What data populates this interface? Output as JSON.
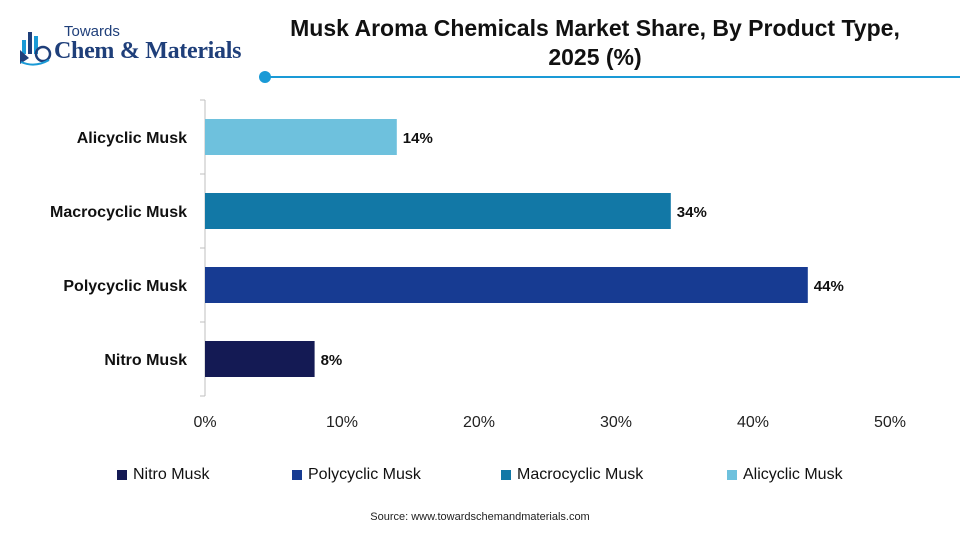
{
  "header": {
    "logo_small": "Towards",
    "logo_big": "Chem & Materials",
    "title": "Musk Aroma Chemicals Market Share, By Product Type, 2025 (%)",
    "accent_color": "#1a9ad6"
  },
  "chart_data": {
    "type": "bar",
    "orientation": "horizontal",
    "title": "Musk Aroma Chemicals Market Share, By Product Type, 2025 (%)",
    "categories": [
      "Alicyclic Musk",
      "Macrocyclic Musk",
      "Polycyclic Musk",
      "Nitro Musk"
    ],
    "values": [
      14,
      34,
      44,
      8
    ],
    "value_labels": [
      "14%",
      "34%",
      "44%",
      "8%"
    ],
    "colors": [
      "#6ec1dd",
      "#1278a6",
      "#173b92",
      "#141a54"
    ],
    "xlim": [
      0,
      50
    ],
    "x_ticks": [
      "0%",
      "10%",
      "20%",
      "30%",
      "40%",
      "50%"
    ],
    "grid": false,
    "legend_position": "bottom",
    "legend": [
      {
        "label": "Nitro Musk",
        "color": "#141a54"
      },
      {
        "label": "Polycyclic Musk",
        "color": "#173b92"
      },
      {
        "label": "Macrocyclic Musk",
        "color": "#1278a6"
      },
      {
        "label": "Alicyclic Musk",
        "color": "#6ec1dd"
      }
    ]
  },
  "footer": {
    "source": "Source: www.towardschemandmaterials.com"
  }
}
